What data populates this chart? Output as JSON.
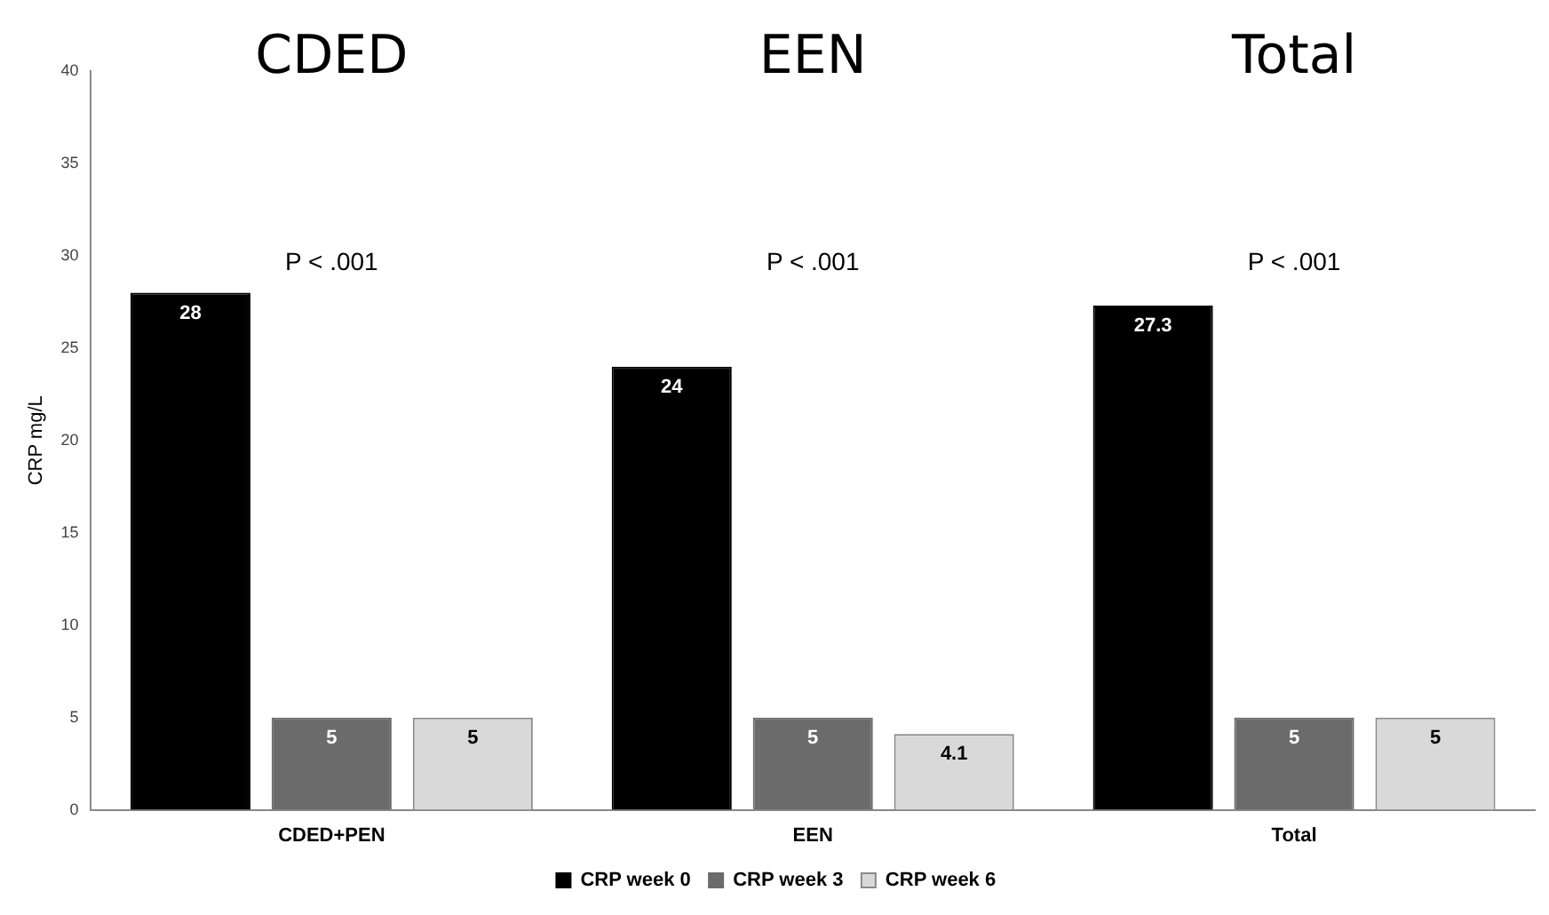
{
  "chart_data": {
    "type": "bar",
    "ylabel": "CRP mg/L",
    "categories": [
      "CDED+PEN",
      "EEN",
      "Total"
    ],
    "series": [
      {
        "name": "CRP week 0",
        "color": "#000000",
        "values": [
          28,
          24,
          27.3
        ]
      },
      {
        "name": "CRP week 3",
        "color": "#6b6b6b",
        "values": [
          5,
          5,
          5
        ]
      },
      {
        "name": "CRP week 6",
        "color": "#d9d9d9",
        "values": [
          5,
          4.1,
          5
        ]
      }
    ],
    "ylim": [
      0,
      40
    ],
    "yticks": [
      0,
      5,
      10,
      15,
      20,
      25,
      30,
      35,
      40
    ],
    "grid": false,
    "legend": "bottom",
    "data_labels": true,
    "annotations": [
      "CDED",
      "EEN",
      "Total",
      "P < .001",
      "P < .001",
      "P < .001"
    ]
  }
}
